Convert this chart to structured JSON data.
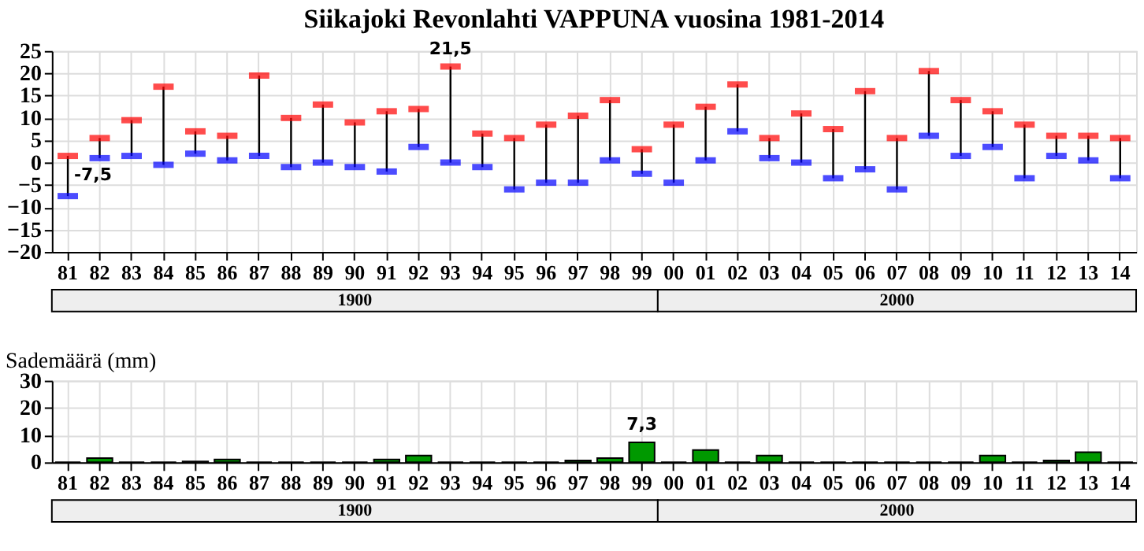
{
  "chart_data": [
    {
      "type": "scatter",
      "title": "Siikajoki Revonlahti VAPPUNA vuosina 1981-2014",
      "categories": [
        "81",
        "82",
        "83",
        "84",
        "85",
        "86",
        "87",
        "88",
        "89",
        "90",
        "91",
        "92",
        "93",
        "94",
        "95",
        "96",
        "97",
        "98",
        "99",
        "00",
        "01",
        "02",
        "03",
        "04",
        "05",
        "06",
        "07",
        "08",
        "09",
        "10",
        "11",
        "12",
        "13",
        "14"
      ],
      "series": [
        {
          "color": "#ff0000",
          "values": [
            1.5,
            5.5,
            9.5,
            17,
            7,
            6,
            19.5,
            10,
            13,
            9,
            11.5,
            12,
            21.5,
            6.5,
            5.5,
            8.5,
            10.5,
            14,
            3,
            8.5,
            12.5,
            17.5,
            5.5,
            11,
            7.5,
            16,
            5.5,
            20.5,
            14,
            11.5,
            8.5,
            6,
            6,
            5.5
          ]
        },
        {
          "color": "#0000ff",
          "values": [
            -7.5,
            1,
            1.5,
            -0.5,
            2,
            0.5,
            1.5,
            -1,
            0,
            -1,
            -2,
            3.5,
            0,
            -1,
            -6,
            -4.5,
            -4.5,
            0.5,
            -2.5,
            -4.5,
            0.5,
            7,
            1,
            0,
            -3.5,
            -1.5,
            -6,
            6,
            1.5,
            3.5,
            -3.5,
            1.5,
            0.5,
            -3.5
          ]
        }
      ],
      "marker": "square",
      "ylim": [
        -20,
        25
      ],
      "yticks": [
        -20,
        -15,
        -10,
        -5,
        0,
        5,
        10,
        15,
        20,
        25
      ],
      "grid": true,
      "annotations": [
        {
          "text": "-7,5",
          "x": "81",
          "y": -7.5
        },
        {
          "text": "21,5",
          "x": "93",
          "y": 21.5
        },
        "1900",
        "2000"
      ]
    },
    {
      "type": "bar",
      "ylabel": "Sademäärä (mm)",
      "categories": [
        "81",
        "82",
        "83",
        "84",
        "85",
        "86",
        "87",
        "88",
        "89",
        "90",
        "91",
        "92",
        "93",
        "94",
        "95",
        "96",
        "97",
        "98",
        "99",
        "00",
        "01",
        "02",
        "03",
        "04",
        "05",
        "06",
        "07",
        "08",
        "09",
        "10",
        "11",
        "12",
        "13",
        "14"
      ],
      "series": [
        {
          "color": "#009900",
          "values": [
            0,
            1.5,
            0,
            0,
            0.3,
            1,
            0,
            0,
            0,
            0,
            1,
            2.5,
            0,
            0,
            0,
            0,
            0.7,
            1.5,
            7.3,
            0,
            4.5,
            0,
            2.5,
            0,
            0,
            0,
            0,
            0,
            0,
            2.5,
            0,
            0.7,
            3.7,
            0
          ]
        }
      ],
      "ylim": [
        0,
        30
      ],
      "yticks": [
        0,
        10,
        20,
        30
      ],
      "grid": true,
      "annotations": [
        {
          "text": "7,3",
          "x": "99",
          "y": 7.3
        },
        "1900",
        "2000"
      ]
    }
  ]
}
